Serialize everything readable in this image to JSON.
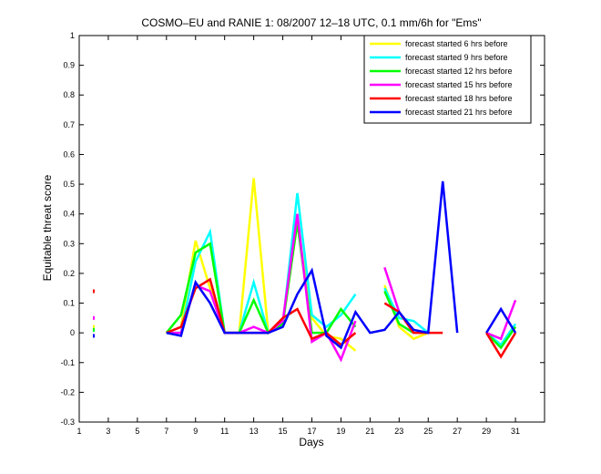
{
  "chart_data": {
    "type": "line",
    "title": "COSMO–EU and RANIE 1: 08/2007 12–18 UTC, 0.1 mm/6h for \"Ems\"",
    "xlabel": "Days",
    "ylabel": "Equitable threat score",
    "xlim": [
      1,
      33
    ],
    "ylim": [
      -0.3,
      1
    ],
    "xticks": [
      1,
      3,
      5,
      7,
      9,
      11,
      13,
      15,
      17,
      19,
      21,
      23,
      25,
      27,
      29,
      31
    ],
    "yticks": [
      -0.3,
      -0.2,
      -0.1,
      0,
      0.1,
      0.2,
      0.3,
      0.4,
      0.5,
      0.6,
      0.7,
      0.8,
      0.9,
      1
    ],
    "legend_position": "top-right",
    "series": [
      {
        "name": "forecast started 6 hrs before",
        "color": "#ffff00",
        "points": [
          [
            2,
            0.02
          ],
          null,
          [
            7,
            0.0
          ],
          [
            8,
            0.02
          ],
          [
            9,
            0.31
          ],
          [
            10,
            0.15
          ],
          [
            11,
            0.0
          ],
          [
            12,
            0.0
          ],
          [
            13,
            0.52
          ],
          [
            14,
            0.0
          ],
          [
            15,
            0.03
          ],
          [
            16,
            0.37
          ],
          [
            17,
            0.05
          ],
          [
            18,
            -0.01
          ],
          [
            19,
            -0.02
          ],
          [
            20,
            -0.06
          ],
          null,
          [
            22,
            0.16
          ],
          [
            23,
            0.02
          ],
          [
            24,
            -0.02
          ],
          [
            25,
            0.0
          ]
        ]
      },
      {
        "name": "forecast started 9 hrs before",
        "color": "#00ffff",
        "points": [
          [
            2,
            0.01
          ],
          null,
          [
            7,
            0.0
          ],
          [
            8,
            0.0
          ],
          [
            9,
            0.24
          ],
          [
            10,
            0.34
          ],
          [
            11,
            0.0
          ],
          [
            12,
            0.0
          ],
          [
            13,
            0.17
          ],
          [
            14,
            0.0
          ],
          [
            15,
            0.03
          ],
          [
            16,
            0.47
          ],
          [
            17,
            0.06
          ],
          [
            18,
            0.02
          ],
          [
            19,
            0.06
          ],
          [
            20,
            0.13
          ],
          null,
          [
            22,
            0.15
          ],
          [
            23,
            0.05
          ],
          [
            24,
            0.04
          ],
          [
            25,
            0.0
          ],
          null,
          [
            29,
            0.0
          ],
          [
            30,
            -0.04
          ],
          [
            31,
            0.03
          ]
        ]
      },
      {
        "name": "forecast started 12 hrs before",
        "color": "#00ff00",
        "points": [
          [
            2,
            0.01
          ],
          null,
          [
            7,
            0.0
          ],
          [
            8,
            0.06
          ],
          [
            9,
            0.27
          ],
          [
            10,
            0.3
          ],
          [
            11,
            0.0
          ],
          [
            12,
            0.0
          ],
          [
            13,
            0.11
          ],
          [
            14,
            0.0
          ],
          [
            15,
            0.03
          ],
          [
            16,
            0.37
          ],
          [
            17,
            0.0
          ],
          [
            18,
            0.0
          ],
          [
            19,
            0.08
          ],
          [
            20,
            0.02
          ],
          null,
          [
            22,
            0.14
          ],
          [
            23,
            0.03
          ],
          [
            24,
            0.0
          ],
          null,
          [
            29,
            0.0
          ],
          [
            30,
            -0.05
          ],
          [
            31,
            0.02
          ]
        ]
      },
      {
        "name": "forecast started 15 hrs before",
        "color": "#ff00ff",
        "points": [
          [
            2,
            0.05
          ],
          null,
          [
            7,
            0.0
          ],
          [
            8,
            0.0
          ],
          [
            9,
            0.16
          ],
          [
            10,
            0.14
          ],
          [
            11,
            0.0
          ],
          [
            12,
            0.0
          ],
          [
            13,
            0.02
          ],
          [
            14,
            0.0
          ],
          [
            15,
            0.04
          ],
          [
            16,
            0.4
          ],
          [
            17,
            -0.03
          ],
          [
            18,
            0.0
          ],
          [
            19,
            -0.09
          ],
          [
            20,
            0.04
          ],
          null,
          [
            22,
            0.22
          ],
          [
            23,
            0.07
          ],
          [
            24,
            0.0
          ],
          null,
          [
            29,
            0.0
          ],
          [
            30,
            -0.02
          ],
          [
            31,
            0.11
          ]
        ]
      },
      {
        "name": "forecast started 18 hrs before",
        "color": "#ff0000",
        "points": [
          [
            2,
            0.14
          ],
          null,
          [
            7,
            0.0
          ],
          [
            8,
            0.02
          ],
          [
            9,
            0.15
          ],
          [
            10,
            0.18
          ],
          [
            11,
            0.0
          ],
          [
            12,
            0.0
          ],
          [
            13,
            0.0
          ],
          [
            14,
            0.0
          ],
          [
            15,
            0.05
          ],
          [
            16,
            0.08
          ],
          [
            17,
            -0.02
          ],
          [
            18,
            0.0
          ],
          [
            19,
            -0.04
          ],
          [
            20,
            0.0
          ],
          null,
          [
            22,
            0.1
          ],
          [
            23,
            0.07
          ],
          [
            24,
            0.0
          ],
          [
            25,
            0.0
          ],
          [
            26,
            0.0
          ],
          null,
          [
            29,
            0.0
          ],
          [
            30,
            -0.08
          ],
          [
            31,
            0.0
          ]
        ]
      },
      {
        "name": "forecast started 21 hrs before",
        "color": "#0000ff",
        "points": [
          [
            2,
            -0.01
          ],
          null,
          [
            7,
            0.0
          ],
          [
            8,
            -0.01
          ],
          [
            9,
            0.17
          ],
          [
            10,
            0.1
          ],
          [
            11,
            0.0
          ],
          [
            12,
            0.0
          ],
          [
            13,
            0.0
          ],
          [
            14,
            0.0
          ],
          [
            15,
            0.02
          ],
          [
            16,
            0.13
          ],
          [
            17,
            0.21
          ],
          [
            18,
            -0.01
          ],
          [
            19,
            -0.05
          ],
          [
            20,
            0.07
          ],
          [
            21,
            0.0
          ],
          [
            22,
            0.01
          ],
          [
            23,
            0.07
          ],
          [
            24,
            0.01
          ],
          [
            25,
            0.0
          ],
          [
            26,
            0.51
          ],
          [
            27,
            0.0
          ],
          null,
          [
            29,
            0.0
          ],
          [
            30,
            0.08
          ],
          [
            31,
            0.0
          ]
        ]
      }
    ]
  }
}
